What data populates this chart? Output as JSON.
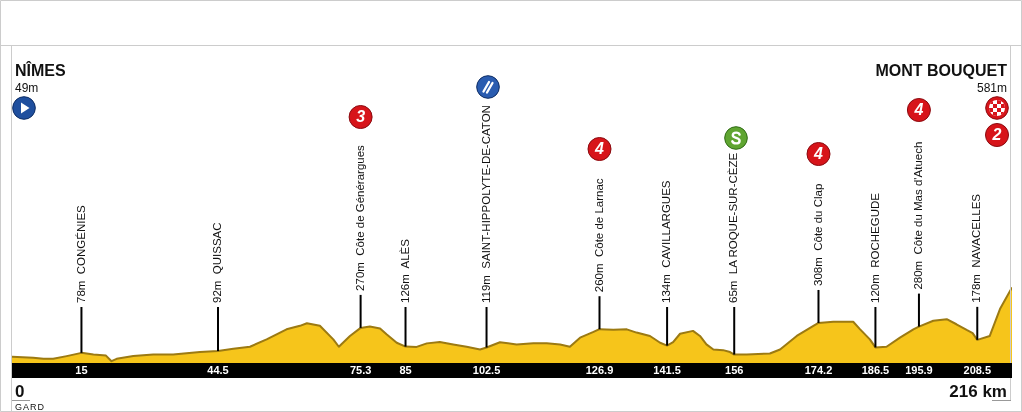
{
  "chart_data": {
    "type": "area",
    "color": "#f6c51b",
    "x": [
      0,
      4.6,
      6.8,
      8.9,
      11.8,
      15,
      17.6,
      20.3,
      21.5,
      22.6,
      26.2,
      30.5,
      34.8,
      40.6,
      44.5,
      47.8,
      51.4,
      55,
      59.3,
      62.2,
      63.7,
      66.5,
      69.4,
      70.6,
      73,
      75.3,
      77.3,
      79.5,
      80.9,
      83.1,
      85,
      87.4,
      89.6,
      92.4,
      95.3,
      98.2,
      101.1,
      102.5,
      105.4,
      109,
      112.6,
      115.5,
      118.4,
      120.5,
      122.7,
      125.6,
      126.9,
      129.9,
      132.8,
      134.9,
      137.8,
      140,
      141.5,
      142.8,
      144.3,
      147.1,
      148.6,
      150,
      151.5,
      153.6,
      155.1,
      156,
      158.7,
      163.7,
      165.9,
      169.5,
      173.1,
      174.2,
      177.4,
      181.7,
      183.2,
      185.3,
      186.5,
      188.9,
      191.8,
      194.7,
      195.9,
      199,
      201.9,
      204,
      206.2,
      207.5,
      208.5,
      211.2,
      213.4,
      216
    ],
    "values": [
      49,
      40,
      32,
      32,
      53,
      78,
      65,
      57,
      14,
      32,
      53,
      65,
      65,
      84,
      92,
      109,
      125,
      182,
      259,
      286,
      306,
      286,
      182,
      125,
      208,
      270,
      280,
      266,
      221,
      156,
      126,
      124,
      151,
      162,
      143,
      125,
      104,
      119,
      160,
      143,
      151,
      151,
      143,
      125,
      195,
      239,
      260,
      255,
      259,
      234,
      208,
      156,
      134,
      160,
      225,
      247,
      208,
      143,
      104,
      99,
      84,
      65,
      65,
      73,
      104,
      208,
      286,
      308,
      317,
      317,
      259,
      182,
      120,
      125,
      195,
      259,
      280,
      325,
      337,
      298,
      254,
      230,
      178,
      208,
      415,
      581
    ],
    "value_labels": [
      null,
      null,
      null,
      null,
      null,
      "78m  CONGÉNIES",
      null,
      null,
      null,
      null,
      null,
      null,
      null,
      null,
      "92m  QUISSAC",
      null,
      null,
      null,
      null,
      null,
      null,
      null,
      null,
      null,
      null,
      "270m  Côte de Générargues",
      null,
      null,
      null,
      null,
      "126m  ALÈS",
      null,
      null,
      null,
      null,
      null,
      null,
      "119m  SAINT-HIPPOLYTE-DE-CATON",
      null,
      null,
      null,
      null,
      null,
      null,
      null,
      null,
      "260m  Côte de Larnac",
      null,
      null,
      null,
      null,
      null,
      "134m  CAVILLARGUES",
      null,
      null,
      null,
      null,
      null,
      null,
      null,
      null,
      "65m  LA ROQUE-SUR-CÈZE",
      null,
      null,
      null,
      null,
      null,
      "308m  Côte du Clap",
      null,
      null,
      null,
      null,
      "120m  ROCHEGUDE",
      null,
      null,
      null,
      "280m  Côte du Mas d'Atuech",
      null,
      null,
      null,
      null,
      null,
      "178m  NAVACELLES",
      null,
      null,
      null
    ],
    "xlim": [
      0,
      216
    ],
    "xticks": [
      15,
      44.5,
      75.3,
      85,
      102.5,
      126.9,
      141.5,
      156,
      174.2,
      186.5,
      195.9,
      208.5
    ],
    "tick_labels": "x",
    "annotations": [
      "NÎMES",
      "49m",
      "MONT BOUQUET",
      "581m",
      "0",
      "216 km",
      "GARD",
      "3",
      "4",
      "4",
      "4",
      "2"
    ]
  }
}
